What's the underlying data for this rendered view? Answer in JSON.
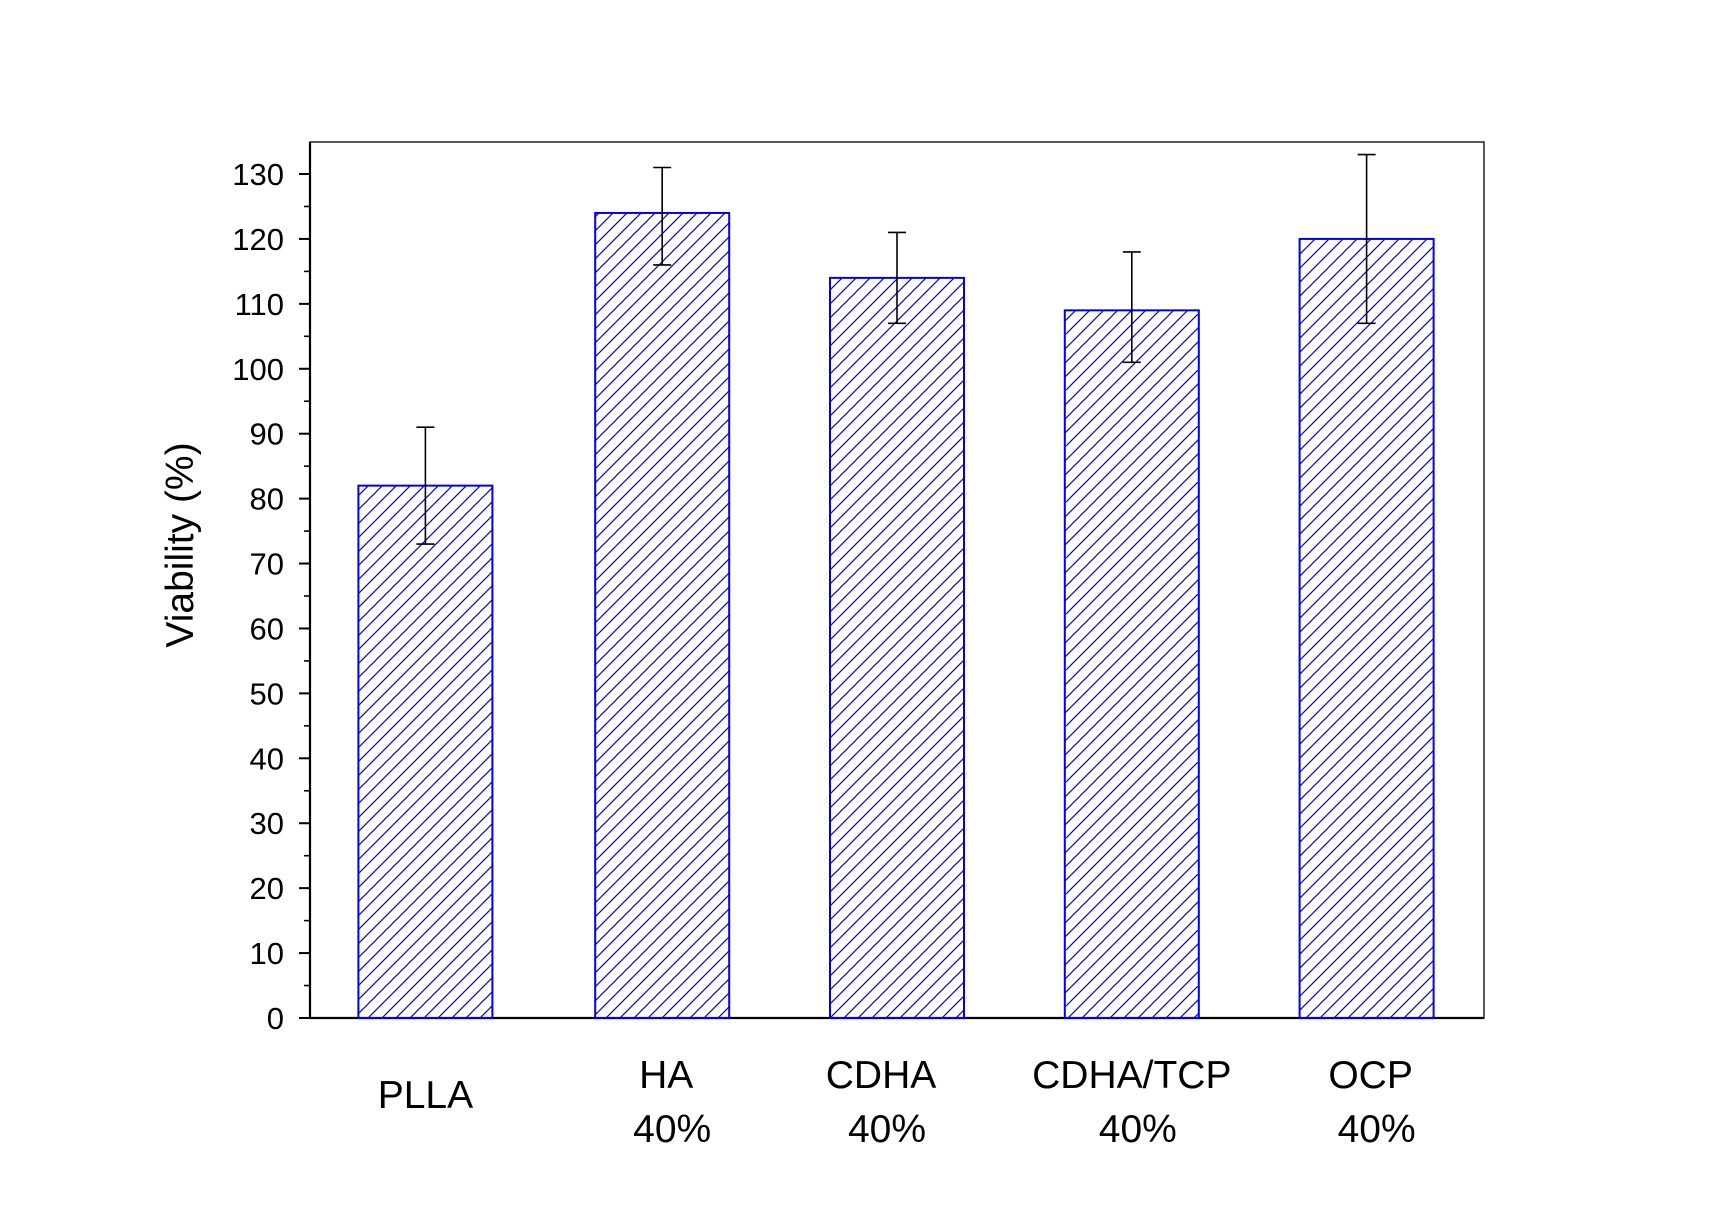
{
  "chart_data": {
    "type": "bar",
    "categories": [
      [
        "PLLA"
      ],
      [
        "HA",
        "40%"
      ],
      [
        "CDHA",
        "40%"
      ],
      [
        "CDHA/TCP",
        "40%"
      ],
      [
        "OCP",
        "40%"
      ]
    ],
    "values": [
      82,
      124,
      114,
      109,
      120
    ],
    "error_low": [
      73,
      116,
      107,
      101,
      107
    ],
    "error_high": [
      91,
      131,
      121,
      118,
      133
    ],
    "xlabel": "",
    "ylabel": "Viability (%)",
    "ylim": [
      0,
      135
    ],
    "yticks": [
      0,
      10,
      20,
      30,
      40,
      50,
      60,
      70,
      80,
      90,
      100,
      110,
      120,
      130
    ],
    "grid": false,
    "bar_style": "diagonal hatch",
    "bar_color": "#0000ee"
  }
}
